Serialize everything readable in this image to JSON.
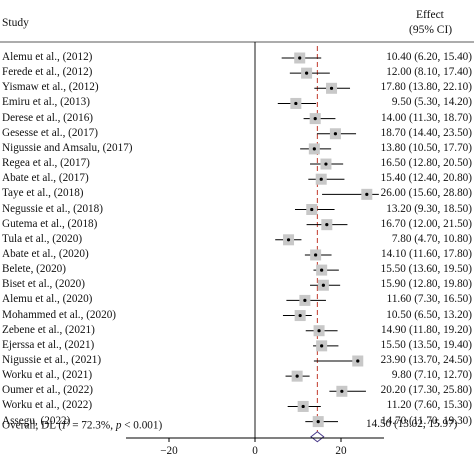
{
  "header": {
    "study": "Study",
    "effect": "Effect",
    "ci": "(95% CI)"
  },
  "overall": {
    "label_prefix": "Overall, DL (",
    "i2_symbol": "I",
    "i2_sup": "2",
    "i2_value": " = 72.3%, ",
    "p_symbol": "p",
    "p_value": " < 0.001)",
    "effect_text": "14.50 (13.02, 15.97)"
  },
  "chart_data": {
    "type": "forest",
    "axis": {
      "ticks": [
        -20,
        0,
        20
      ],
      "range": [
        -30,
        30
      ],
      "null_line": 0
    },
    "pooled": {
      "estimate": 14.5,
      "lower": 13.02,
      "upper": 15.97,
      "line_color": "#c0392b"
    },
    "studies": [
      {
        "name": "Alemu et al., (2012)",
        "est": 10.4,
        "lo": 6.2,
        "hi": 15.4,
        "text": "10.40 (6.20, 15.40)"
      },
      {
        "name": "Ferede et al., (2012)",
        "est": 12.0,
        "lo": 8.1,
        "hi": 17.4,
        "text": "12.00 (8.10, 17.40)"
      },
      {
        "name": "Yismaw et al., (2012)",
        "est": 17.8,
        "lo": 13.8,
        "hi": 22.1,
        "text": "17.80 (13.80, 22.10)"
      },
      {
        "name": "Emiru et al., (2013)",
        "est": 9.5,
        "lo": 5.3,
        "hi": 14.2,
        "text": "9.50 (5.30, 14.20)"
      },
      {
        "name": "Derese et al., (2016)",
        "est": 14.0,
        "lo": 11.3,
        "hi": 18.7,
        "text": "14.00 (11.30, 18.70)"
      },
      {
        "name": "Gesesse et al., (2017)",
        "est": 18.7,
        "lo": 14.4,
        "hi": 23.5,
        "text": "18.70 (14.40, 23.50)"
      },
      {
        "name": "Nigussie and Amsalu, (2017)",
        "est": 13.8,
        "lo": 10.5,
        "hi": 17.7,
        "text": "13.80 (10.50, 17.70)"
      },
      {
        "name": "Regea et al., (2017)",
        "est": 16.5,
        "lo": 12.8,
        "hi": 20.5,
        "text": "16.50 (12.80, 20.50)"
      },
      {
        "name": "Abate et al., (2017)",
        "est": 15.4,
        "lo": 12.4,
        "hi": 20.8,
        "text": "15.40 (12.40, 20.80)"
      },
      {
        "name": "Taye et al., (2018)",
        "est": 26.0,
        "lo": 15.6,
        "hi": 28.8,
        "text": "26.00 (15.60, 28.80)"
      },
      {
        "name": "Negussie et al., (2018)",
        "est": 13.2,
        "lo": 9.3,
        "hi": 18.5,
        "text": "13.20 (9.30, 18.50)"
      },
      {
        "name": "Gutema et al., (2018)",
        "est": 16.7,
        "lo": 12.0,
        "hi": 21.5,
        "text": "16.70 (12.00, 21.50)"
      },
      {
        "name": "Tula et al., (2020)",
        "est": 7.8,
        "lo": 4.7,
        "hi": 10.8,
        "text": "7.80 (4.70, 10.80)"
      },
      {
        "name": "Abate et al., (2020)",
        "est": 14.1,
        "lo": 11.6,
        "hi": 17.8,
        "text": "14.10 (11.60, 17.80)"
      },
      {
        "name": "Belete, (2020)",
        "est": 15.5,
        "lo": 13.6,
        "hi": 19.5,
        "text": "15.50 (13.60, 19.50)"
      },
      {
        "name": "Biset et al., (2020)",
        "est": 15.9,
        "lo": 12.8,
        "hi": 19.8,
        "text": "15.90 (12.80, 19.80)"
      },
      {
        "name": "Alemu et al., (2020)",
        "est": 11.6,
        "lo": 7.3,
        "hi": 16.5,
        "text": "11.60 (7.30, 16.50)"
      },
      {
        "name": "Mohammed et al., (2020)",
        "est": 10.5,
        "lo": 6.5,
        "hi": 13.2,
        "text": "10.50 (6.50, 13.20)"
      },
      {
        "name": "Zebene et al., (2021)",
        "est": 14.9,
        "lo": 11.8,
        "hi": 19.2,
        "text": "14.90 (11.80, 19.20)"
      },
      {
        "name": "Ejerssa et al., (2021)",
        "est": 15.5,
        "lo": 13.5,
        "hi": 19.4,
        "text": "15.50 (13.50, 19.40)"
      },
      {
        "name": "Nigussie et al., (2021)",
        "est": 23.9,
        "lo": 13.7,
        "hi": 24.5,
        "text": "23.90 (13.70, 24.50)"
      },
      {
        "name": "Worku et al., (2021)",
        "est": 9.8,
        "lo": 7.1,
        "hi": 12.7,
        "text": "9.80 (7.10, 12.70)"
      },
      {
        "name": "Oumer et al., (2022)",
        "est": 20.2,
        "lo": 17.3,
        "hi": 25.8,
        "text": "20.20 (17.30, 25.80)"
      },
      {
        "name": "Worku et al., (2022)",
        "est": 11.2,
        "lo": 7.6,
        "hi": 15.3,
        "text": "11.20 (7.60, 15.30)"
      },
      {
        "name": "Assegu, (2022)",
        "est": 14.7,
        "lo": 11.7,
        "hi": 19.3,
        "text": "14.70 (11.70, 19.30)"
      }
    ]
  }
}
